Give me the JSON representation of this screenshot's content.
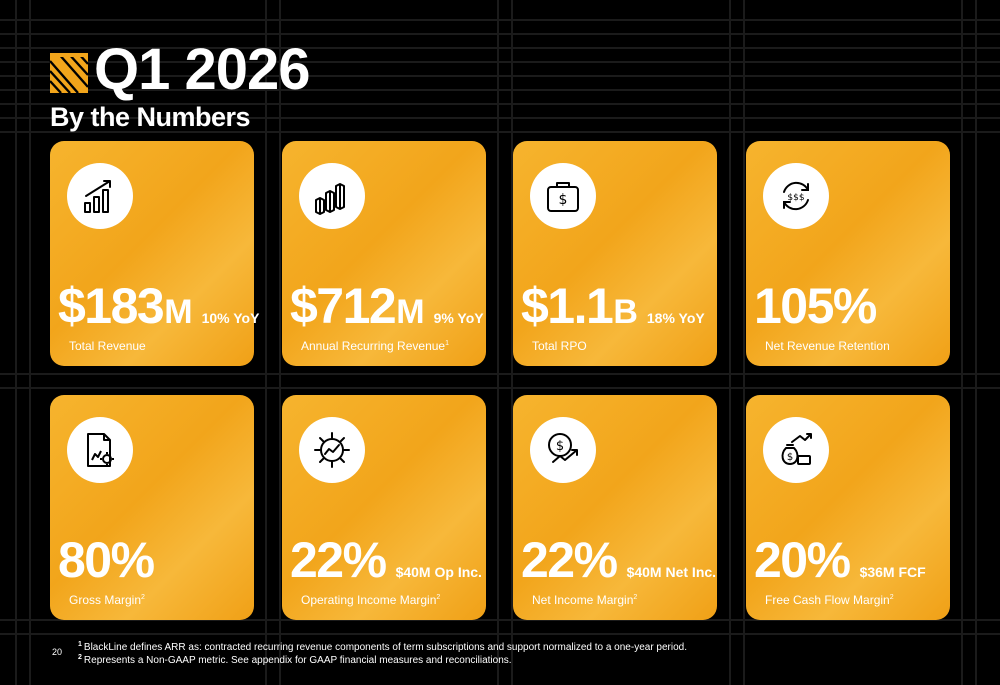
{
  "header": {
    "title": "Q1 2026",
    "subtitle": "By the Numbers"
  },
  "cards": [
    {
      "value": "$183",
      "unit": "M",
      "extra": "10% YoY",
      "label": "Total Revenue",
      "sup": "",
      "icon": "bar-chart-growth-icon"
    },
    {
      "value": "$712",
      "unit": "M",
      "extra": "9% YoY",
      "label": "Annual Recurring Revenue",
      "sup": "1",
      "icon": "bar-chart-3d-icon"
    },
    {
      "value": "$1.1",
      "unit": "B",
      "extra": "18% YoY",
      "label": "Total RPO",
      "sup": "",
      "icon": "briefcase-dollar-icon"
    },
    {
      "value": "105%",
      "unit": "",
      "extra": "",
      "label": "Net Revenue Retention",
      "sup": "",
      "icon": "recurring-dollar-icon"
    },
    {
      "value": "80%",
      "unit": "",
      "extra": "",
      "label": "Gross Margin",
      "sup": "2",
      "icon": "document-chart-gear-icon"
    },
    {
      "value": "22%",
      "unit": "",
      "extra": "$40M Op Inc.",
      "label": "Operating Income Margin",
      "sup": "2",
      "icon": "gear-trend-icon"
    },
    {
      "value": "22%",
      "unit": "",
      "extra": "$40M Net Inc.",
      "label": "Net Income Margin",
      "sup": "2",
      "icon": "dollar-trend-icon"
    },
    {
      "value": "20%",
      "unit": "",
      "extra": "$36M FCF",
      "label": "Free Cash Flow Margin",
      "sup": "2",
      "icon": "money-bag-growth-icon"
    }
  ],
  "footer": {
    "page_number": "20",
    "notes": [
      {
        "num": "1",
        "text": "BlackLine defines ARR as: contracted recurring revenue components of term subscriptions and support normalized to a one-year period."
      },
      {
        "num": "2",
        "text": "Represents a Non-GAAP metric. See appendix for GAAP financial measures and reconciliations."
      }
    ]
  },
  "colors": {
    "background": "#000000",
    "card": "#f2a51b",
    "text": "#ffffff",
    "logo": "#f2a51b"
  }
}
